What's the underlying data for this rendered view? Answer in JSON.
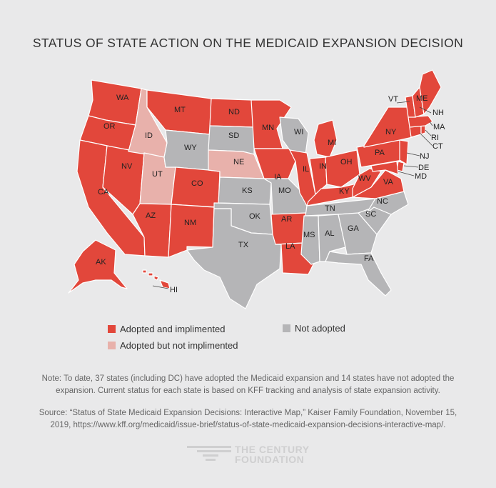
{
  "title": "STATUS OF STATE ACTION ON THE MEDICAID EXPANSION DECISION",
  "colors": {
    "adopted": "#e2473b",
    "adopted_not_implemented": "#e8b1ab",
    "not_adopted": "#b5b5b7",
    "background": "#e9e9ea"
  },
  "legend": {
    "adopted": "Adopted and implimented",
    "adopted_not_implemented": "Adopted but not implimented",
    "not_adopted": "Not adopted"
  },
  "states": {
    "WA": "adopted",
    "OR": "adopted",
    "CA": "adopted",
    "NV": "adopted",
    "ID": "adopted_not_implemented",
    "UT": "adopted_not_implemented",
    "NE": "adopted_not_implemented",
    "AZ": "adopted",
    "MT": "adopted",
    "CO": "adopted",
    "NM": "adopted",
    "WY": "not_adopted",
    "ND": "adopted",
    "SD": "not_adopted",
    "KS": "not_adopted",
    "OK": "not_adopted",
    "TX": "not_adopted",
    "MN": "adopted",
    "IA": "adopted",
    "MO": "not_adopted",
    "AR": "adopted",
    "LA": "adopted",
    "WI": "not_adopted",
    "IL": "adopted",
    "MI": "adopted",
    "IN": "adopted",
    "OH": "adopted",
    "KY": "adopted",
    "TN": "not_adopted",
    "MS": "not_adopted",
    "AL": "not_adopted",
    "GA": "not_adopted",
    "FL": "not_adopted",
    "SC": "not_adopted",
    "NC": "not_adopted",
    "VA": "adopted",
    "WV": "adopted",
    "PA": "adopted",
    "NY": "adopted",
    "VT": "adopted",
    "NH": "adopted",
    "ME": "adopted",
    "MA": "adopted",
    "RI": "adopted",
    "CT": "adopted",
    "NJ": "adopted",
    "DE": "adopted",
    "MD": "adopted",
    "AK": "adopted",
    "HI": "adopted"
  },
  "note": "Note: To date, 37 states (including DC) have adopted the Medicaid expansion and 14 states have not adopted the expansion. Current status for each state is based on KFF tracking and analysis of state expansion activity.",
  "source": "Source: “Status of State Medicaid Expansion Decisions: Interactive Map,” Kaiser Family Foundation, November 15, 2019, https://www.kff.org/medicaid/issue-brief/status-of-state-medicaid-expansion-decisions-interactive-map/.",
  "logo": {
    "line1": "THE CENTURY",
    "line2": "FOUNDATION"
  }
}
